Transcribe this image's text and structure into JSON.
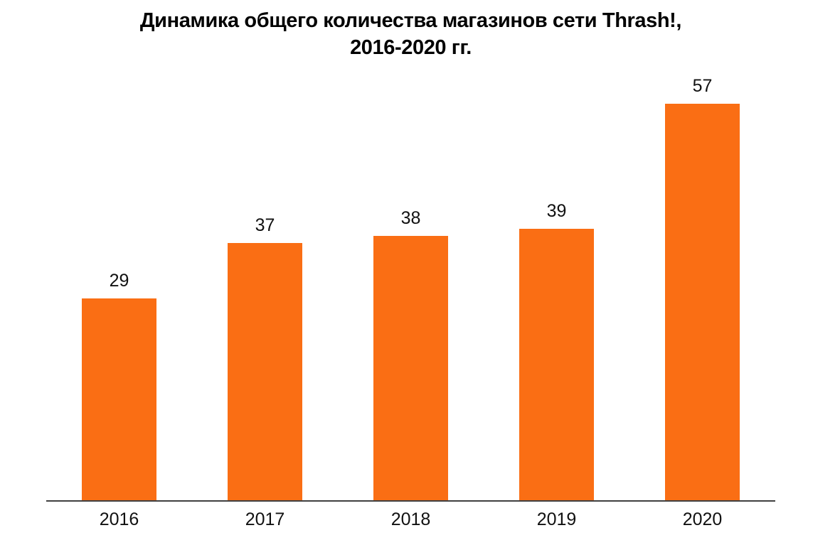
{
  "chart_data": {
    "type": "bar",
    "title": "Динамика общего количества магазинов сети Thrash!, 2016-2020 гг.",
    "title_lines": [
      "Динамика общего количества магазинов сети Thrash!,",
      "2016-2020 гг."
    ],
    "categories": [
      "2016",
      "2017",
      "2018",
      "2019",
      "2020"
    ],
    "values": [
      29,
      37,
      38,
      39,
      57
    ],
    "xlabel": "",
    "ylabel": "",
    "ylim": [
      0,
      63
    ],
    "grid": false,
    "legend": false,
    "data_labels": true,
    "colors": {
      "bar": "#FA6E14",
      "title": "#000000",
      "label": "#111111",
      "axis_line": "#404040",
      "background": "#FFFFFF"
    }
  }
}
